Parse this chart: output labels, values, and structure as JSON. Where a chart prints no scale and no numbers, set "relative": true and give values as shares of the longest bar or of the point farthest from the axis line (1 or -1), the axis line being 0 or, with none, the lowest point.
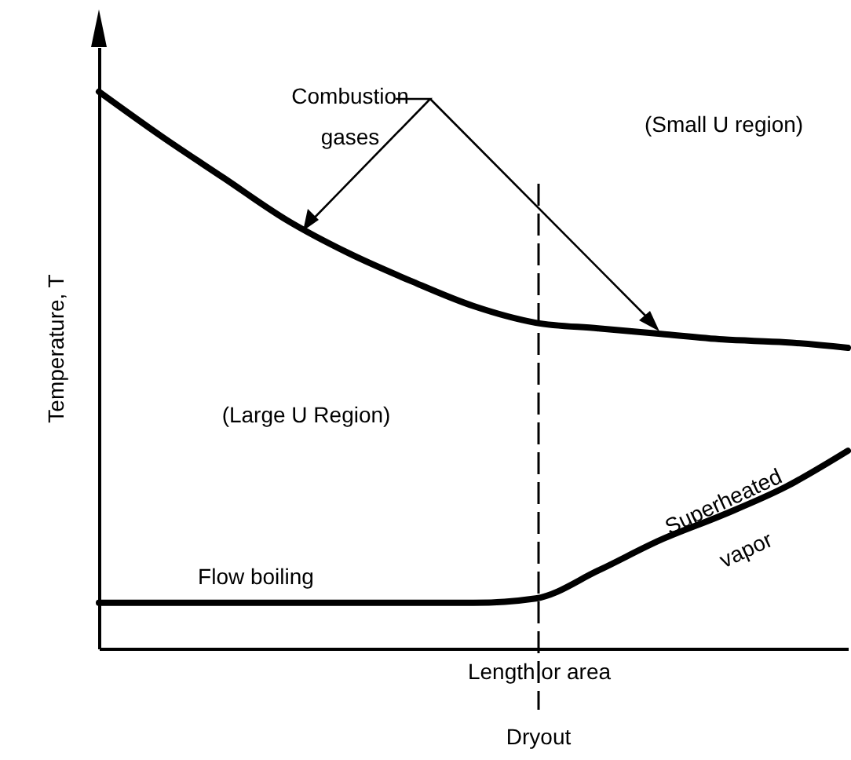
{
  "chart_data": {
    "type": "line",
    "relative": true,
    "xlabel": "Length or area",
    "ylabel": "Temperature, T",
    "categories": [
      null,
      null,
      null,
      null,
      null,
      null,
      null,
      null,
      null,
      null,
      null,
      null,
      null
    ],
    "series": [
      {
        "color": "#000000",
        "values": [
          1.0,
          0.92,
          0.845,
          0.77,
          0.71,
          0.66,
          0.615,
          0.585,
          0.575,
          0.565,
          0.555,
          0.55,
          0.54
        ]
      },
      {
        "color": "#000000",
        "values": [
          0.082,
          0.082,
          0.082,
          0.082,
          0.082,
          0.082,
          0.082,
          0.09,
          0.14,
          0.195,
          0.24,
          0.29,
          0.355
        ]
      }
    ],
    "annotations": [
      "Combustion gases",
      "(Small U region)",
      "(Large U Region)",
      "Flow boiling",
      "Superheated vapor",
      "Dryout"
    ],
    "marker": "none",
    "line_style": "solid"
  }
}
